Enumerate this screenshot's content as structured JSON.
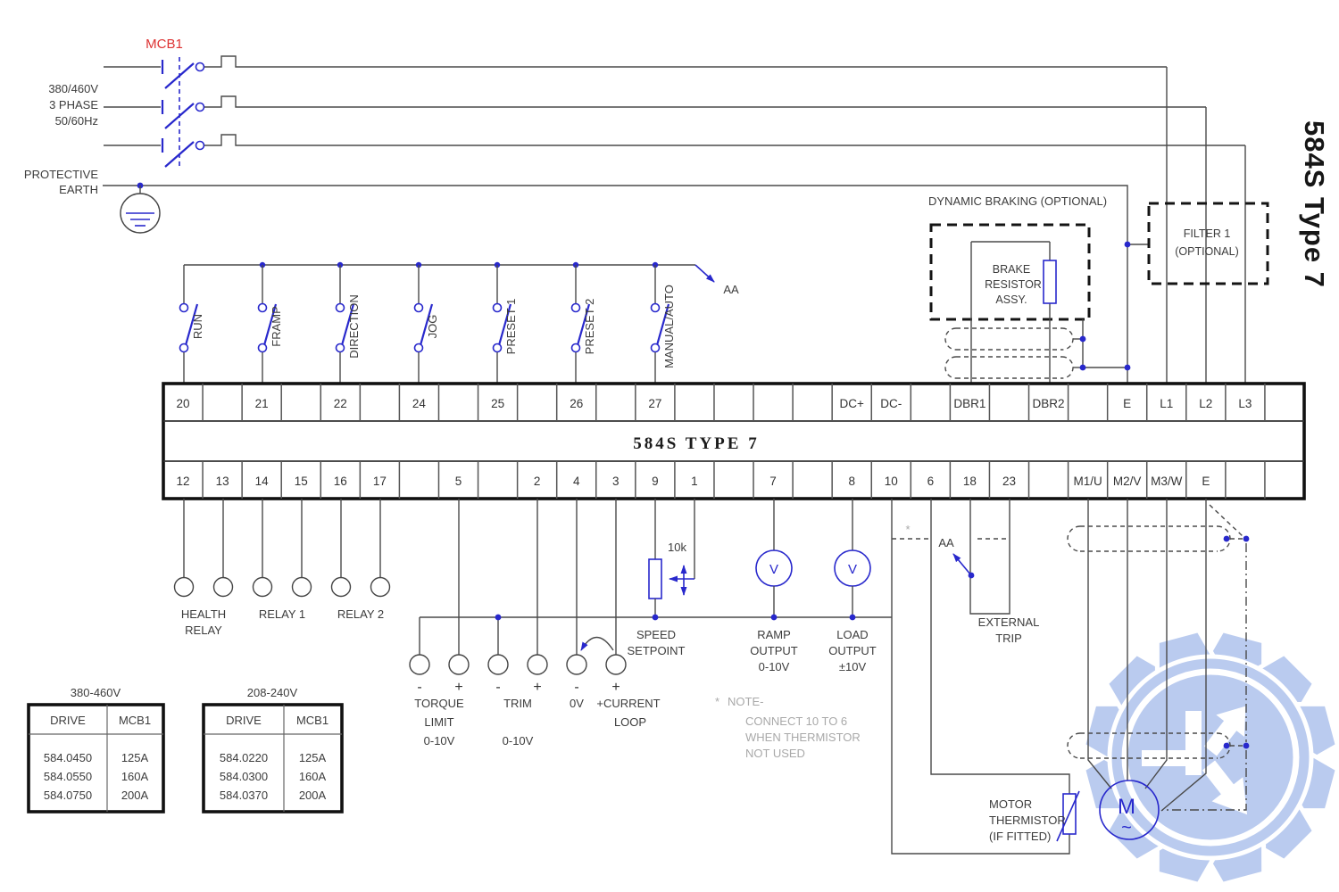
{
  "side_title": "584S Type 7",
  "block": {
    "title": "584S TYPE 7"
  },
  "supply": {
    "mcb_label": "MCB1",
    "lines": [
      "380/460V",
      "3 PHASE",
      "50/60Hz"
    ],
    "earth_lines": [
      "PROTECTIVE",
      "EARTH"
    ]
  },
  "bus": {
    "ref": "AA"
  },
  "switches": [
    {
      "label": "RUN"
    },
    {
      "label": "FRAMP"
    },
    {
      "label": "DIRECTION"
    },
    {
      "label": "JOG"
    },
    {
      "label": "PRESET 1"
    },
    {
      "label": "PRESET 2"
    },
    {
      "label": "MANUAL/AUTO"
    }
  ],
  "terminals": {
    "top": [
      "20",
      "",
      "21",
      "",
      "22",
      "",
      "24",
      "",
      "25",
      "",
      "26",
      "",
      "27",
      "",
      "",
      "",
      "",
      "DC+",
      "DC-",
      "",
      "DBR1",
      "",
      "DBR2",
      "",
      "E",
      "L1",
      "L2",
      "L3",
      ""
    ],
    "bottom": [
      "12",
      "13",
      "14",
      "15",
      "16",
      "17",
      "",
      "5",
      "",
      "2",
      "4",
      "3",
      "9",
      "1",
      "",
      "7",
      "",
      "8",
      "10",
      "6",
      "18",
      "23",
      "",
      "M1/U",
      "M2/V",
      "M3/W",
      "E",
      "",
      ""
    ]
  },
  "relays": {
    "health_lines": [
      "HEALTH",
      "RELAY"
    ],
    "relay1": "RELAY 1",
    "relay2": "RELAY 2"
  },
  "analog": {
    "sign_minus": "-",
    "sign_plus": "+",
    "torque_lines": [
      "TORQUE",
      "LIMIT",
      "0-10V"
    ],
    "trim_label": "TRIM",
    "trim_range": "0-10V",
    "zero_volt": "0V",
    "current_lines": [
      "+CURRENT",
      "LOOP"
    ],
    "pot_value": "10k",
    "speed_lines": [
      "SPEED",
      "SETPOINT"
    ]
  },
  "outputs": {
    "meter": "V",
    "ramp_lines": [
      "RAMP",
      "OUTPUT",
      "0-10V"
    ],
    "load_lines": [
      "LOAD",
      "OUTPUT",
      "±10V"
    ]
  },
  "trip": {
    "lines": [
      "EXTERNAL",
      "TRIP"
    ],
    "ref": "AA"
  },
  "note": {
    "star": "*",
    "heading": "NOTE-",
    "lines": [
      "CONNECT 10 TO 6",
      "WHEN THERMISTOR",
      "NOT USED"
    ],
    "jumper_star": "*"
  },
  "thermistor": {
    "lines": [
      "MOTOR",
      "THERMISTOR",
      "(IF FITTED)"
    ]
  },
  "dynamic_braking": {
    "label": "DYNAMIC BRAKING (OPTIONAL)",
    "resistor_lines": [
      "BRAKE",
      "RESISTOR",
      "ASSY."
    ]
  },
  "filter": {
    "lines": [
      "FILTER 1",
      "(OPTIONAL)"
    ]
  },
  "motor": {
    "label": "M",
    "ac": "~"
  },
  "tables": [
    {
      "title": "380-460V",
      "headers": [
        "DRIVE",
        "MCB1"
      ],
      "rows": [
        [
          "584.0450",
          "125A"
        ],
        [
          "584.0550",
          "160A"
        ],
        [
          "584.0750",
          "200A"
        ]
      ]
    },
    {
      "title": "208-240V",
      "headers": [
        "DRIVE",
        "MCB1"
      ],
      "rows": [
        [
          "584.0220",
          "125A"
        ],
        [
          "584.0300",
          "160A"
        ],
        [
          "584.0370",
          "200A"
        ]
      ]
    }
  ],
  "colors": {
    "blue": "#2828cc",
    "red": "#dd3333",
    "wire": "#4a4a4a",
    "watermark": "#b7c9ef"
  }
}
